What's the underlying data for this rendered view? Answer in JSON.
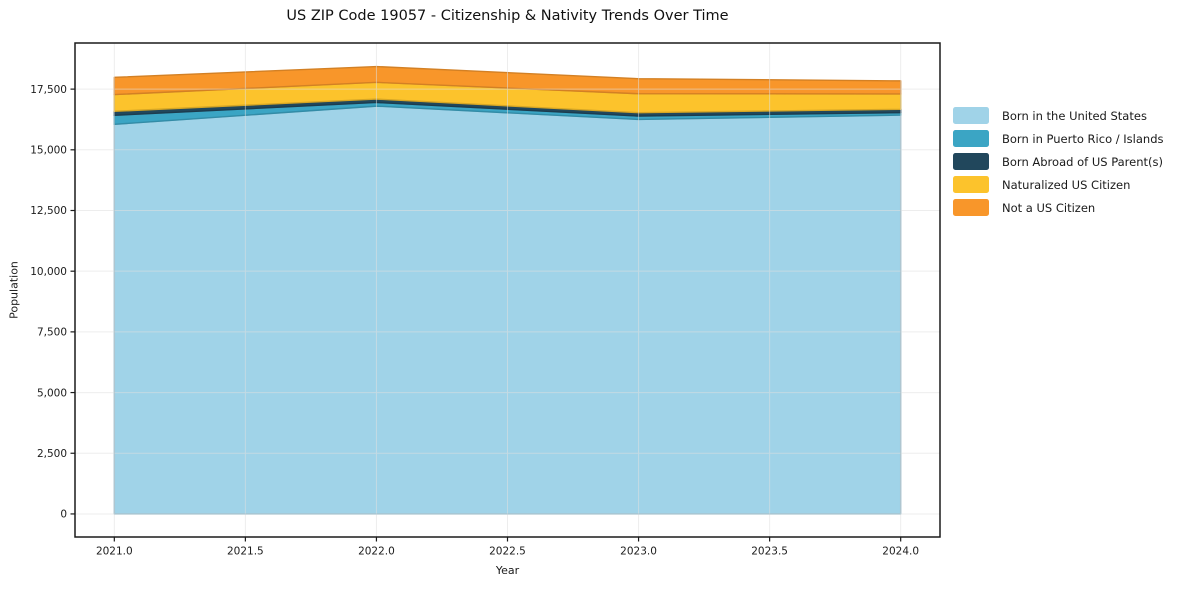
{
  "chart_data": {
    "type": "area",
    "stacked": true,
    "title": "US ZIP Code 19057 - Citizenship & Nativity Trends Over Time",
    "xlabel": "Year",
    "ylabel": "Population",
    "x": [
      2021,
      2022,
      2023,
      2024
    ],
    "series": [
      {
        "name": "Born in the United States",
        "color": "#A0D3E8",
        "values": [
          16050,
          16800,
          16250,
          16430
        ]
      },
      {
        "name": "Born in Puerto Rico / Islands",
        "color": "#3BA5C4",
        "values": [
          370,
          150,
          140,
          100
        ]
      },
      {
        "name": "Born Abroad of US Parent(s)",
        "color": "#21475C",
        "values": [
          165,
          140,
          140,
          140
        ]
      },
      {
        "name": "Naturalized US Citizen",
        "color": "#FCC32C",
        "values": [
          690,
          690,
          780,
          630
        ]
      },
      {
        "name": "Not a US Citizen",
        "color": "#F8962A",
        "values": [
          710,
          650,
          620,
          540
        ]
      }
    ],
    "xlim": [
      2020.85,
      2024.15
    ],
    "ylim": [
      -950,
      19400
    ],
    "xticks": [
      2021.0,
      2021.5,
      2022.0,
      2022.5,
      2023.0,
      2023.5,
      2024.0
    ],
    "xtick_labels": [
      "2021.0",
      "2021.5",
      "2022.0",
      "2022.5",
      "2023.0",
      "2023.5",
      "2024.0"
    ],
    "yticks": [
      0,
      2500,
      5000,
      7500,
      10000,
      12500,
      15000,
      17500
    ],
    "ytick_labels": [
      "0",
      "2,500",
      "5,000",
      "7,500",
      "10,000",
      "12,500",
      "15,000",
      "17,500"
    ],
    "grid": true,
    "legend_position": "right-outside",
    "colors": {
      "spine": "#1a1a1a",
      "grid": "#e0e0e0",
      "tick_label": "#1c1c1c"
    }
  }
}
